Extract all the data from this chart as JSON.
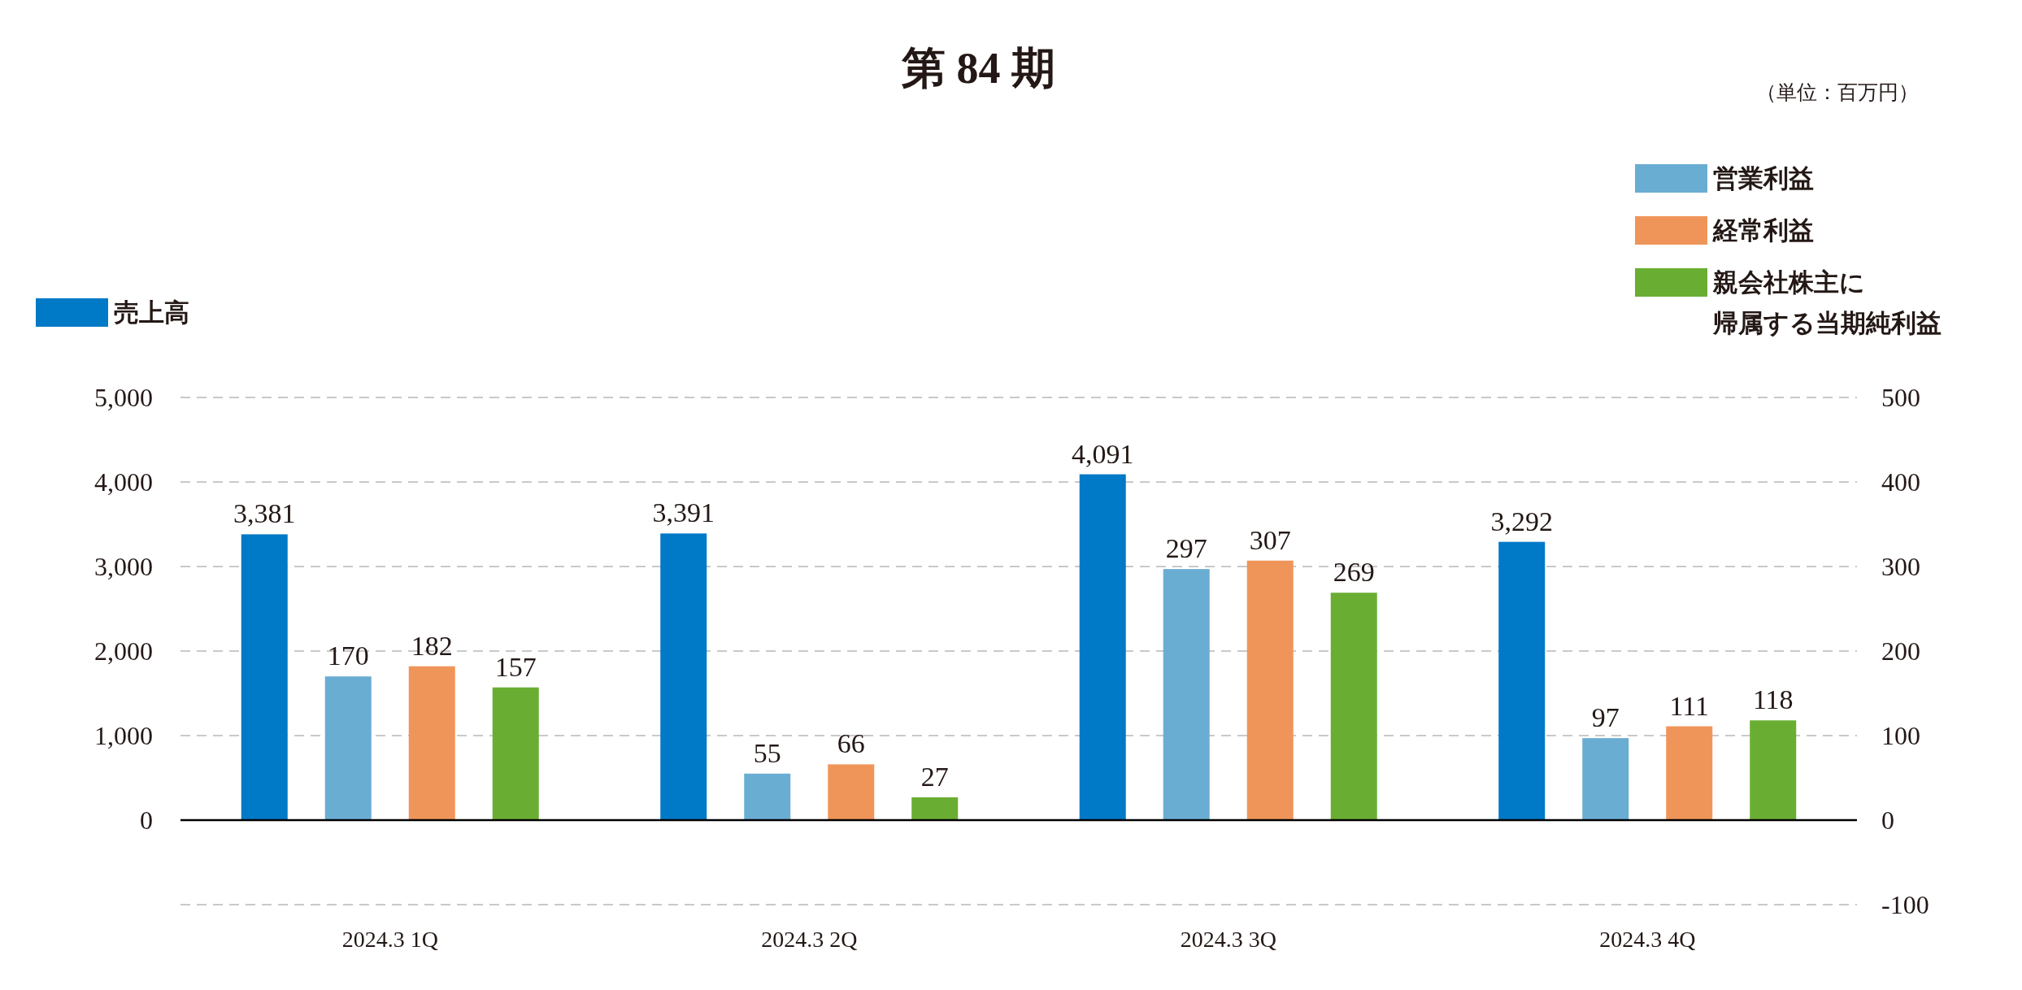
{
  "chart_data": {
    "type": "bar",
    "title": "第 84 期",
    "annotations": [
      "（単位：百万円）"
    ],
    "categories": [
      "2024.3 1Q",
      "2024.3 2Q",
      "2024.3 3Q",
      "2024.3 4Q"
    ],
    "series": [
      {
        "name": "売上高",
        "color": "#0079c7",
        "values": [
          3381,
          3391,
          4091,
          3292
        ],
        "value_labels": [
          "3,381",
          "3,391",
          "4,091",
          "3,292"
        ]
      },
      {
        "name": "営業利益",
        "color": "#6aadd3",
        "axis": "y2",
        "values": [
          170,
          55,
          297,
          97
        ]
      },
      {
        "name": "経常利益",
        "color": "#f0955a",
        "axis": "y2",
        "values": [
          182,
          66,
          307,
          111
        ]
      },
      {
        "name": "親会社株主に帰属する当期純利益",
        "color": "#69ae32",
        "axis": "y2",
        "values": [
          157,
          27,
          269,
          118
        ]
      }
    ],
    "ylim": [
      -1000,
      5000
    ],
    "yticks": [
      {
        "value": -1000,
        "label": null
      },
      0,
      {
        "value": 1000,
        "label": "1,000"
      },
      {
        "value": 2000,
        "label": "2,000"
      },
      {
        "value": 3000,
        "label": "3,000"
      },
      {
        "value": 4000,
        "label": "4,000"
      },
      {
        "value": 5000,
        "label": "5,000"
      }
    ],
    "y2lim": [
      -100,
      500
    ],
    "y2ticks": [
      -100,
      0,
      100,
      200,
      300,
      400,
      500
    ],
    "grid": "y",
    "data_labels": true,
    "legend": "top"
  }
}
